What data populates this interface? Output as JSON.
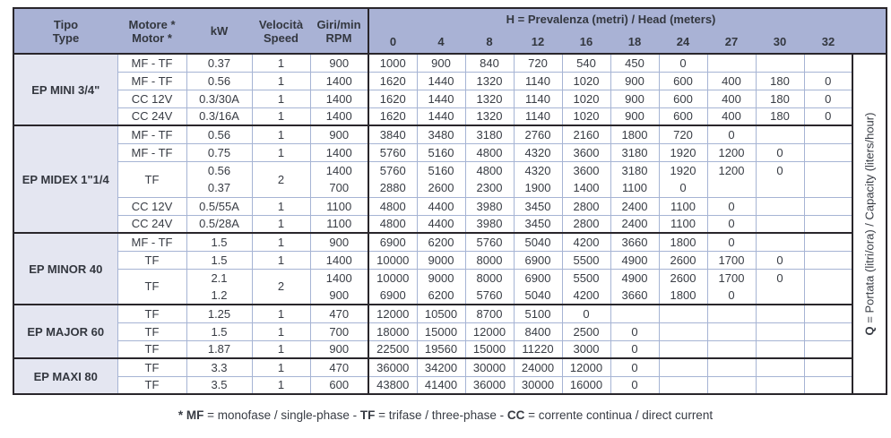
{
  "colors": {
    "header_blue": "#a9b2d5",
    "type_column_tint": "#e4e6f1",
    "grid_line": "#a6b4d4",
    "dark_line": "#29262b",
    "text": "#383c44"
  },
  "footnote": {
    "parts": [
      {
        "t": "* MF",
        "b": 1
      },
      {
        "t": " = monofase / single-phase - ",
        "b": 0
      },
      {
        "t": "TF",
        "b": 1
      },
      {
        "t": " = trifase / three-phase - ",
        "b": 0
      },
      {
        "t": "CC",
        "b": 1
      },
      {
        "t": " = corrente continua / direct current",
        "b": 0
      }
    ]
  },
  "q_axis": {
    "parts": [
      {
        "t": "Q",
        "b": 1
      },
      {
        "t": " = Portata (litri/ora) / Capacity (liters/hour)",
        "b": 0
      }
    ]
  },
  "table": {
    "header": {
      "left_cols": [
        {
          "l1": "Tipo",
          "l2": "Type"
        },
        {
          "l1": "Motore *",
          "l2": "Motor *"
        },
        {
          "l1": "kW",
          "l2": ""
        },
        {
          "l1": "Velocità",
          "l2": "Speed"
        },
        {
          "l1": "Giri/min",
          "l2": "RPM"
        }
      ],
      "h_title_parts": [
        {
          "t": "H",
          "b": 1
        },
        {
          "t": " = Prevalenza (metri) / Head (meters)",
          "b": 0
        }
      ],
      "head_values": [
        "0",
        "4",
        "8",
        "12",
        "16",
        "18",
        "24",
        "27",
        "30",
        "32"
      ]
    },
    "groups": [
      {
        "name": "EP MINI 3/4\"",
        "rows": [
          {
            "motor": "MF - TF",
            "speed": "1",
            "lines": [
              {
                "kw": "0.37",
                "rpm": "900",
                "v": [
                  "1000",
                  "900",
                  "840",
                  "720",
                  "540",
                  "450",
                  "0",
                  "",
                  "",
                  ""
                ]
              }
            ]
          },
          {
            "motor": "MF - TF",
            "speed": "1",
            "lines": [
              {
                "kw": "0.56",
                "rpm": "1400",
                "v": [
                  "1620",
                  "1440",
                  "1320",
                  "1140",
                  "1020",
                  "900",
                  "600",
                  "400",
                  "180",
                  "0"
                ]
              }
            ]
          },
          {
            "motor": "CC 12V",
            "speed": "1",
            "lines": [
              {
                "kw": "0.3/30A",
                "rpm": "1400",
                "v": [
                  "1620",
                  "1440",
                  "1320",
                  "1140",
                  "1020",
                  "900",
                  "600",
                  "400",
                  "180",
                  "0"
                ]
              }
            ]
          },
          {
            "motor": "CC 24V",
            "speed": "1",
            "lines": [
              {
                "kw": "0.3/16A",
                "rpm": "1400",
                "v": [
                  "1620",
                  "1440",
                  "1320",
                  "1140",
                  "1020",
                  "900",
                  "600",
                  "400",
                  "180",
                  "0"
                ]
              }
            ]
          }
        ]
      },
      {
        "name": "EP MIDEX 1\"1/4",
        "rows": [
          {
            "motor": "MF - TF",
            "speed": "1",
            "lines": [
              {
                "kw": "0.56",
                "rpm": "900",
                "v": [
                  "3840",
                  "3480",
                  "3180",
                  "2760",
                  "2160",
                  "1800",
                  "720",
                  "0",
                  "",
                  ""
                ]
              }
            ]
          },
          {
            "motor": "MF - TF",
            "speed": "1",
            "lines": [
              {
                "kw": "0.75",
                "rpm": "1400",
                "v": [
                  "5760",
                  "5160",
                  "4800",
                  "4320",
                  "3600",
                  "3180",
                  "1920",
                  "1200",
                  "0",
                  ""
                ]
              }
            ]
          },
          {
            "motor": "TF",
            "speed": "2",
            "lines": [
              {
                "kw": "0.56",
                "rpm": "1400",
                "v": [
                  "5760",
                  "5160",
                  "4800",
                  "4320",
                  "3600",
                  "3180",
                  "1920",
                  "1200",
                  "0",
                  ""
                ]
              },
              {
                "kw": "0.37",
                "rpm": "700",
                "v": [
                  "2880",
                  "2600",
                  "2300",
                  "1900",
                  "1400",
                  "1100",
                  "0",
                  "",
                  "",
                  ""
                ]
              }
            ]
          },
          {
            "motor": "CC 12V",
            "speed": "1",
            "lines": [
              {
                "kw": "0.5/55A",
                "rpm": "1100",
                "v": [
                  "4800",
                  "4400",
                  "3980",
                  "3450",
                  "2800",
                  "2400",
                  "1100",
                  "0",
                  "",
                  ""
                ]
              }
            ]
          },
          {
            "motor": "CC 24V",
            "speed": "1",
            "lines": [
              {
                "kw": "0.5/28A",
                "rpm": "1100",
                "v": [
                  "4800",
                  "4400",
                  "3980",
                  "3450",
                  "2800",
                  "2400",
                  "1100",
                  "0",
                  "",
                  ""
                ]
              }
            ]
          }
        ]
      },
      {
        "name": "EP MINOR 40",
        "rows": [
          {
            "motor": "MF - TF",
            "speed": "1",
            "lines": [
              {
                "kw": "1.5",
                "rpm": "900",
                "v": [
                  "6900",
                  "6200",
                  "5760",
                  "5040",
                  "4200",
                  "3660",
                  "1800",
                  "0",
                  "",
                  ""
                ]
              }
            ]
          },
          {
            "motor": "TF",
            "speed": "1",
            "lines": [
              {
                "kw": "1.5",
                "rpm": "1400",
                "v": [
                  "10000",
                  "9000",
                  "8000",
                  "6900",
                  "5500",
                  "4900",
                  "2600",
                  "1700",
                  "0",
                  ""
                ]
              }
            ]
          },
          {
            "motor": "TF",
            "speed": "2",
            "lines": [
              {
                "kw": "2.1",
                "rpm": "1400",
                "v": [
                  "10000",
                  "9000",
                  "8000",
                  "6900",
                  "5500",
                  "4900",
                  "2600",
                  "1700",
                  "0",
                  ""
                ]
              },
              {
                "kw": "1.2",
                "rpm": "900",
                "v": [
                  "6900",
                  "6200",
                  "5760",
                  "5040",
                  "4200",
                  "3660",
                  "1800",
                  "0",
                  "",
                  ""
                ]
              }
            ]
          }
        ]
      },
      {
        "name": "EP MAJOR 60",
        "rows": [
          {
            "motor": "TF",
            "speed": "1",
            "lines": [
              {
                "kw": "1.25",
                "rpm": "470",
                "v": [
                  "12000",
                  "10500",
                  "8700",
                  "5100",
                  "0",
                  "",
                  "",
                  "",
                  "",
                  ""
                ]
              }
            ]
          },
          {
            "motor": "TF",
            "speed": "1",
            "lines": [
              {
                "kw": "1.5",
                "rpm": "700",
                "v": [
                  "18000",
                  "15000",
                  "12000",
                  "8400",
                  "2500",
                  "0",
                  "",
                  "",
                  "",
                  ""
                ]
              }
            ]
          },
          {
            "motor": "TF",
            "speed": "1",
            "lines": [
              {
                "kw": "1.87",
                "rpm": "900",
                "v": [
                  "22500",
                  "19560",
                  "15000",
                  "11220",
                  "3000",
                  "0",
                  "",
                  "",
                  "",
                  ""
                ]
              }
            ]
          }
        ]
      },
      {
        "name": "EP MAXI 80",
        "rows": [
          {
            "motor": "TF",
            "speed": "1",
            "lines": [
              {
                "kw": "3.3",
                "rpm": "470",
                "v": [
                  "36000",
                  "34200",
                  "30000",
                  "24000",
                  "12000",
                  "0",
                  "",
                  "",
                  "",
                  ""
                ]
              }
            ]
          },
          {
            "motor": "TF",
            "speed": "1",
            "lines": [
              {
                "kw": "3.5",
                "rpm": "600",
                "v": [
                  "43800",
                  "41400",
                  "36000",
                  "30000",
                  "16000",
                  "0",
                  "",
                  "",
                  "",
                  ""
                ]
              }
            ]
          }
        ]
      }
    ]
  }
}
